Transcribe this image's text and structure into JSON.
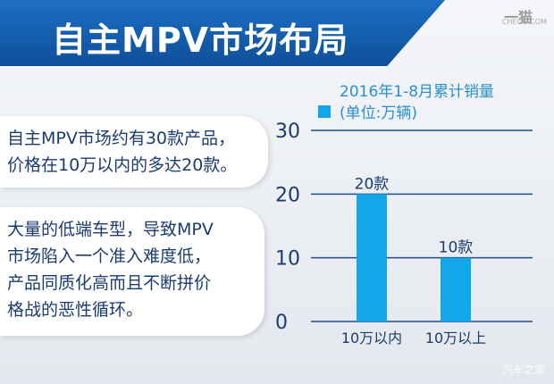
{
  "title": "自主MPV市场布局",
  "logo": {
    "main": "一猫",
    "sub": "CHEOO.COM"
  },
  "watermark": "汽车之家",
  "paragraphs": [
    [
      "自主MPV市场约有30款产品，",
      "价格在10万以内的多达20款。"
    ],
    [
      "大量的低端车型，导致MPV",
      "市场陷入一个准入难度低，",
      "产品同质化高而且不断拼价",
      "格战的恶性循环。"
    ]
  ],
  "colors": {
    "banner": "#1d6fc4",
    "bar": "#11a7ea",
    "axis_text": "#1a3c70",
    "legend_text": "#2a8fd0"
  },
  "chart_data": {
    "type": "bar",
    "title": "2016年1-8月累计销量",
    "unit": "(单位:万辆)",
    "categories": [
      "10万以内",
      "10万以上"
    ],
    "values": [
      20,
      10
    ],
    "data_labels": [
      "20款",
      "10款"
    ],
    "yticks": [
      0,
      10,
      20,
      30
    ],
    "ylim": [
      0,
      30
    ],
    "grid": true,
    "legend": "top"
  }
}
